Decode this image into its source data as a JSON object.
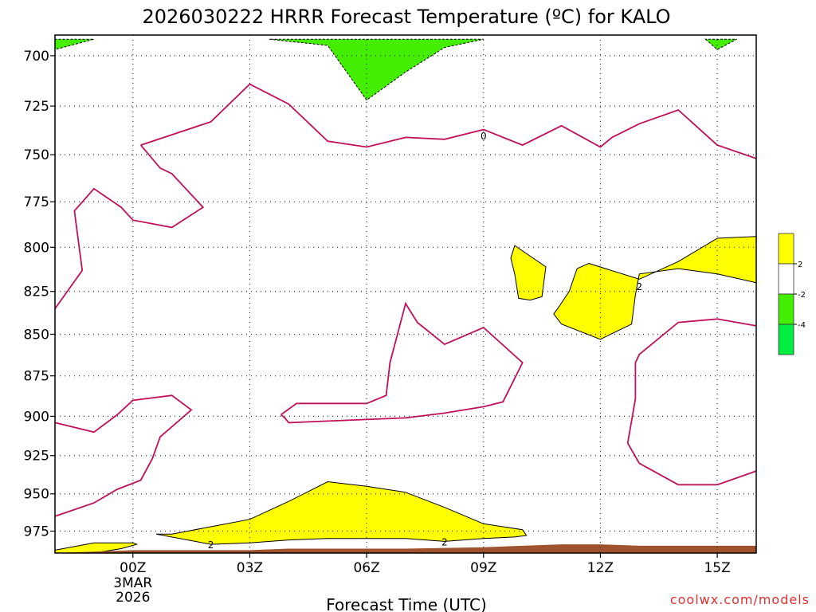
{
  "chart_data": {
    "type": "contour",
    "title": "2026030222 HRRR Forecast Temperature (ºC) for KALO",
    "xlabel": "Forecast Time (UTC)",
    "ylabel": "",
    "credit": "coolwx.com/models",
    "y_axis": {
      "scale": "log-pressure (inverted)",
      "range_hPa": [
        690,
        990
      ],
      "ticks": [
        "700",
        "725",
        "750",
        "775",
        "800",
        "825",
        "850",
        "875",
        "900",
        "925",
        "950",
        "975"
      ]
    },
    "x_axis": {
      "range_hours_from_00Z": [
        -2,
        16
      ],
      "ticks": [
        {
          "hour": 0,
          "label": "00Z",
          "sub1": "3MAR",
          "sub2": "2026"
        },
        {
          "hour": 3,
          "label": "03Z"
        },
        {
          "hour": 6,
          "label": "06Z"
        },
        {
          "hour": 9,
          "label": "09Z"
        },
        {
          "hour": 12,
          "label": "12Z"
        },
        {
          "hour": 15,
          "label": "15Z"
        }
      ]
    },
    "grid": true,
    "colorbar": {
      "placement": "right",
      "bins": [
        {
          "label": "2",
          "color": "#ffff00"
        },
        {
          "label": "-2",
          "color": "#ffffff"
        },
        {
          "label": "-4",
          "color": "#44ee00"
        },
        {
          "label": "",
          "color": "#00ee44"
        }
      ]
    },
    "contour_labels": [
      {
        "text": "0",
        "hour": 9.0,
        "hPa": 740
      },
      {
        "text": "2",
        "hour": 13.0,
        "hPa": 822
      },
      {
        "text": "2",
        "hour": 2.0,
        "hPa": 984
      },
      {
        "text": "2",
        "hour": 8.0,
        "hPa": 982
      }
    ],
    "contours": [
      {
        "name": "zero-line-upper",
        "level": 0,
        "stroke": "#c0105a",
        "fill": "none",
        "points": [
          [
            0.2,
            745
          ],
          [
            2,
            733
          ],
          [
            3,
            714
          ],
          [
            4,
            724
          ],
          [
            5,
            743
          ],
          [
            6,
            746
          ],
          [
            7,
            741
          ],
          [
            8,
            742
          ],
          [
            9,
            737
          ],
          [
            10,
            745
          ],
          [
            11,
            735
          ],
          [
            12,
            746
          ],
          [
            12.3,
            741
          ],
          [
            13,
            734
          ],
          [
            14,
            727
          ],
          [
            15,
            745
          ],
          [
            16,
            752
          ]
        ]
      },
      {
        "name": "zero-line-upper-west",
        "level": 0,
        "stroke": "#c0105a",
        "fill": "none",
        "points": [
          [
            0.2,
            745
          ],
          [
            0.7,
            757
          ],
          [
            1,
            760
          ],
          [
            1.8,
            778
          ],
          [
            1,
            789
          ],
          [
            0,
            785
          ],
          [
            -0.3,
            778
          ],
          [
            -1,
            768
          ],
          [
            -1.5,
            780
          ],
          [
            -1.3,
            813
          ],
          [
            -2,
            835
          ]
        ]
      },
      {
        "name": "zero-line-mid",
        "level": 0,
        "stroke": "#c0105a",
        "fill": "none",
        "points": [
          [
            -2,
            904
          ],
          [
            -1,
            910
          ],
          [
            -0.4,
            899
          ],
          [
            0,
            890
          ],
          [
            1,
            887
          ],
          [
            1.5,
            896
          ],
          [
            0.7,
            913
          ],
          [
            0.5,
            927
          ],
          [
            0.2,
            941
          ],
          [
            -0.4,
            947
          ],
          [
            -1,
            956
          ],
          [
            -2,
            965
          ]
        ]
      },
      {
        "name": "zero-line-central",
        "level": 0,
        "stroke": "#c0105a",
        "fill": "none",
        "points": [
          [
            3.8,
            899
          ],
          [
            4.2,
            892
          ],
          [
            5,
            892
          ],
          [
            6,
            892
          ],
          [
            6.5,
            887
          ],
          [
            6.6,
            867
          ],
          [
            7,
            832
          ],
          [
            7.3,
            843
          ],
          [
            8,
            856
          ],
          [
            9,
            846
          ],
          [
            10,
            867
          ],
          [
            9.5,
            891
          ],
          [
            9,
            894
          ],
          [
            8,
            898
          ],
          [
            7,
            901
          ],
          [
            5,
            903
          ],
          [
            4,
            904
          ],
          [
            3.9,
            901
          ],
          [
            3.8,
            899
          ]
        ]
      },
      {
        "name": "zero-line-east",
        "level": 0,
        "stroke": "#c0105a",
        "fill": "none",
        "points": [
          [
            16,
            845
          ],
          [
            15,
            841
          ],
          [
            14,
            843
          ],
          [
            13,
            862
          ],
          [
            12.9,
            867
          ],
          [
            12.9,
            889
          ],
          [
            12.7,
            917
          ],
          [
            13,
            930
          ],
          [
            14,
            944
          ],
          [
            15,
            944
          ],
          [
            16,
            935
          ]
        ]
      },
      {
        "name": "warm-patch-surface",
        "level": 2,
        "stroke": "#000",
        "fill": "#ffff00",
        "points": [
          [
            0.6,
            977
          ],
          [
            1,
            977
          ],
          [
            2,
            972
          ],
          [
            3,
            967
          ],
          [
            4,
            955
          ],
          [
            5,
            942
          ],
          [
            6,
            945
          ],
          [
            7,
            949
          ],
          [
            8,
            959
          ],
          [
            9,
            970
          ],
          [
            10,
            974
          ],
          [
            10.1,
            978
          ],
          [
            9.8,
            979
          ],
          [
            9,
            980
          ],
          [
            8,
            982
          ],
          [
            7,
            980
          ],
          [
            6,
            980
          ],
          [
            5,
            980
          ],
          [
            4,
            981
          ],
          [
            3,
            983
          ],
          [
            2,
            984
          ],
          [
            0.6,
            977
          ]
        ]
      },
      {
        "name": "warm-patch-southwest",
        "level": 2,
        "stroke": "#000",
        "fill": "#ffff00",
        "points": [
          [
            -2,
            988
          ],
          [
            -1,
            983
          ],
          [
            0,
            983
          ],
          [
            0.1,
            984
          ],
          [
            -0.3,
            987
          ],
          [
            -1,
            990
          ],
          [
            -2,
            990
          ],
          [
            -2,
            988
          ]
        ]
      },
      {
        "name": "warm-patch-east",
        "level": 2,
        "stroke": "#000",
        "fill": "#ffff00",
        "points": [
          [
            11.7,
            809
          ],
          [
            13,
            818
          ],
          [
            14,
            808
          ],
          [
            15,
            795
          ],
          [
            16,
            794
          ],
          [
            16,
            820
          ],
          [
            15,
            815
          ],
          [
            14,
            812
          ],
          [
            13,
            815
          ],
          [
            12.9,
            827
          ],
          [
            12.8,
            844
          ],
          [
            12,
            853
          ],
          [
            11,
            844
          ],
          [
            10.8,
            838
          ],
          [
            10.9,
            835
          ],
          [
            11.2,
            825
          ],
          [
            11.4,
            812
          ],
          [
            11.7,
            809
          ]
        ]
      },
      {
        "name": "warm-patch-small",
        "level": 2,
        "stroke": "#000",
        "fill": "#ffff00",
        "points": [
          [
            9.8,
            799
          ],
          [
            10.6,
            811
          ],
          [
            10.5,
            828
          ],
          [
            10.2,
            830
          ],
          [
            9.9,
            829
          ],
          [
            9.8,
            815
          ],
          [
            9.7,
            806
          ],
          [
            9.8,
            799
          ]
        ]
      },
      {
        "name": "cold-patch-top",
        "level": -4,
        "stroke": "#000",
        "fill": "#44ee00",
        "points": [
          [
            3.5,
            692
          ],
          [
            5,
            695
          ],
          [
            6,
            722
          ],
          [
            7,
            708
          ],
          [
            8,
            696
          ],
          [
            9,
            692
          ],
          [
            3.5,
            692
          ]
        ]
      },
      {
        "name": "cold-patch-topleft",
        "level": -4,
        "stroke": "#000",
        "fill": "#44ee00",
        "points": [
          [
            -2,
            692
          ],
          [
            -2,
            697
          ],
          [
            -1,
            692
          ]
        ]
      },
      {
        "name": "cold-patch-topright",
        "level": -4,
        "stroke": "#000",
        "fill": "#44ee00",
        "points": [
          [
            14.7,
            692
          ],
          [
            15,
            697
          ],
          [
            15.5,
            692
          ]
        ]
      },
      {
        "name": "terrain",
        "level": null,
        "stroke": "none",
        "fill": "#a0522d",
        "points": [
          [
            -2,
            990
          ],
          [
            0,
            988
          ],
          [
            3,
            988
          ],
          [
            4,
            987
          ],
          [
            7,
            987
          ],
          [
            9,
            986
          ],
          [
            10,
            985
          ],
          [
            11,
            984
          ],
          [
            12,
            984
          ],
          [
            13,
            985
          ],
          [
            14,
            985
          ],
          [
            16,
            985
          ],
          [
            16,
            999
          ],
          [
            -2,
            999
          ]
        ]
      }
    ]
  }
}
